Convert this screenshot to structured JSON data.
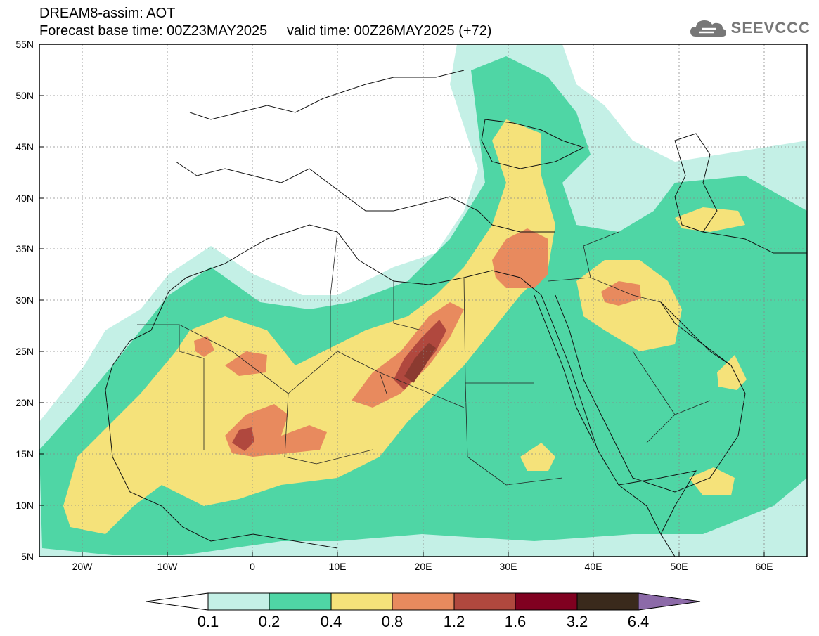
{
  "header": {
    "line1": "DREAM8-assim: AOT",
    "line2": "Forecast base time: 00Z23MAY2025     valid time: 00Z26MAY2025 (+72)"
  },
  "logo": {
    "text": "SEEVCCC",
    "icon": "cloud-icon"
  },
  "map": {
    "x_ticks": [
      "20W",
      "10W",
      "0",
      "10E",
      "20E",
      "30E",
      "40E",
      "50E",
      "60E"
    ],
    "y_ticks": [
      "55N",
      "50N",
      "45N",
      "40N",
      "35N",
      "30N",
      "25N",
      "20N",
      "15N",
      "10N",
      "5N"
    ]
  },
  "colorbar": {
    "labels": [
      "0.1",
      "0.2",
      "0.4",
      "0.8",
      "1.2",
      "1.6",
      "3.2",
      "6.4"
    ],
    "colors": [
      "#c4f0e6",
      "#4fd6a5",
      "#f5e27a",
      "#e88a5e",
      "#b0483e",
      "#800020",
      "#3a2a1c",
      "#8c6aa8"
    ]
  },
  "fill_colors": {
    "c1": "#c4f0e6",
    "c2": "#4fd6a5",
    "c3": "#f5e27a",
    "c4": "#e88a5e",
    "c5": "#b0483e",
    "c6": "#8b3a30"
  }
}
